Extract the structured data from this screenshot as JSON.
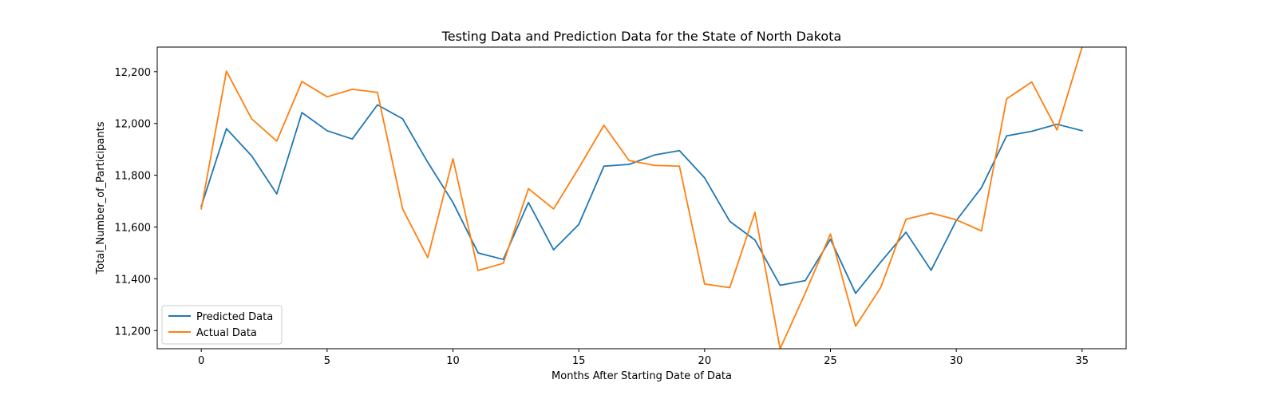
{
  "chart_data": {
    "type": "line",
    "title": "Testing Data and Prediction Data for the State of North Dakota",
    "xlabel": "Months After Starting Date of Data",
    "ylabel": "Total_Number_of_Participants",
    "xlim": [
      -1.75,
      36.75
    ],
    "ylim": [
      11130,
      12295
    ],
    "xticks": [
      0,
      5,
      10,
      15,
      20,
      25,
      30,
      35
    ],
    "yticks": [
      11200,
      11400,
      11600,
      11800,
      12000,
      12200
    ],
    "ytick_labels": [
      "11,200",
      "11,400",
      "11,600",
      "11,800",
      "12,000",
      "12,200"
    ],
    "grid": false,
    "legend_position": "lower-left",
    "x": [
      0,
      1,
      2,
      3,
      4,
      5,
      6,
      7,
      8,
      9,
      10,
      11,
      12,
      13,
      14,
      15,
      16,
      17,
      18,
      19,
      20,
      21,
      22,
      23,
      24,
      25,
      26,
      27,
      28,
      29,
      30,
      31,
      32,
      33,
      34,
      35
    ],
    "series": [
      {
        "name": "Predicted Data",
        "color": "#1f77b4",
        "values": [
          11680,
          11980,
          11875,
          11728,
          12042,
          11972,
          11940,
          12072,
          12018,
          11850,
          11695,
          11500,
          11475,
          11695,
          11512,
          11610,
          11835,
          11842,
          11878,
          11895,
          11790,
          11622,
          11550,
          11375,
          11393,
          11553,
          11344,
          11465,
          11580,
          11433,
          11625,
          11752,
          11952,
          11970,
          11997,
          11972
        ]
      },
      {
        "name": "Actual Data",
        "color": "#ff7f0e",
        "values": [
          11670,
          12202,
          12018,
          11932,
          12162,
          12103,
          12132,
          12120,
          11670,
          11482,
          11864,
          11432,
          11460,
          11748,
          11670,
          11828,
          11993,
          11857,
          11838,
          11835,
          11380,
          11366,
          11657,
          11130,
          11345,
          11573,
          11217,
          11367,
          11630,
          11654,
          11628,
          11585,
          12095,
          12160,
          11975,
          12295
        ]
      }
    ]
  }
}
